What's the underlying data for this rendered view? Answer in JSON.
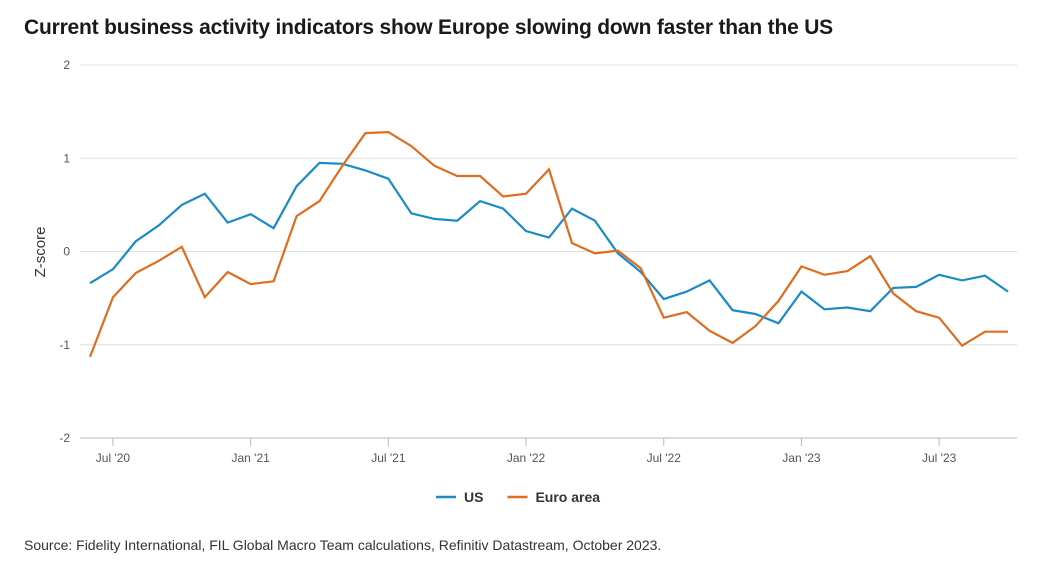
{
  "title": "Current business activity indicators show Europe slowing down faster than the US",
  "source": "Source: Fidelity International, FIL Global Macro Team calculations, Refinitiv Datastream, October 2023.",
  "chart_data": {
    "type": "line",
    "ylabel": "Z-score",
    "xlabel": "",
    "ylim": [
      -2,
      2
    ],
    "yticks": [
      2,
      1,
      0,
      -1,
      -2
    ],
    "xlim": [
      "2020-06",
      "2023-10"
    ],
    "xticks": [
      {
        "label": "Jul '20",
        "date": "2020-07"
      },
      {
        "label": "Jan '21",
        "date": "2021-01"
      },
      {
        "label": "Jul '21",
        "date": "2021-07"
      },
      {
        "label": "Jan '22",
        "date": "2022-01"
      },
      {
        "label": "Jul '22",
        "date": "2022-07"
      },
      {
        "label": "Jan '23",
        "date": "2023-01"
      },
      {
        "label": "Jul '23",
        "date": "2023-07"
      }
    ],
    "grid": true,
    "legend_position": "bottom",
    "x": [
      "2020-06",
      "2020-07",
      "2020-08",
      "2020-09",
      "2020-10",
      "2020-11",
      "2020-12",
      "2021-01",
      "2021-02",
      "2021-03",
      "2021-04",
      "2021-05",
      "2021-06",
      "2021-07",
      "2021-08",
      "2021-09",
      "2021-10",
      "2021-11",
      "2021-12",
      "2022-01",
      "2022-02",
      "2022-03",
      "2022-04",
      "2022-05",
      "2022-06",
      "2022-07",
      "2022-08",
      "2022-09",
      "2022-10",
      "2022-11",
      "2022-12",
      "2023-01",
      "2023-02",
      "2023-03",
      "2023-04",
      "2023-05",
      "2023-06",
      "2023-07",
      "2023-08",
      "2023-09",
      "2023-10"
    ],
    "series": [
      {
        "name": "US",
        "color": "#1a8bc4",
        "values": [
          -0.34,
          -0.19,
          0.11,
          0.28,
          0.5,
          0.62,
          0.31,
          0.4,
          0.25,
          0.7,
          0.95,
          0.94,
          0.87,
          0.78,
          0.41,
          0.35,
          0.33,
          0.54,
          0.46,
          0.22,
          0.15,
          0.46,
          0.33,
          -0.02,
          -0.22,
          -0.51,
          -0.43,
          -0.31,
          -0.63,
          -0.67,
          -0.77,
          -0.43,
          -0.62,
          -0.6,
          -0.64,
          -0.39,
          -0.38,
          -0.25,
          -0.31,
          -0.26,
          -0.43
        ]
      },
      {
        "name": "Euro area",
        "color": "#e06c1f",
        "values": [
          -1.13,
          -0.49,
          -0.23,
          -0.1,
          0.05,
          -0.49,
          -0.22,
          -0.35,
          -0.32,
          0.38,
          0.54,
          0.92,
          1.27,
          1.28,
          1.13,
          0.92,
          0.81,
          0.81,
          0.59,
          0.62,
          0.88,
          0.09,
          -0.02,
          0.01,
          -0.18,
          -0.71,
          -0.65,
          -0.85,
          -0.98,
          -0.8,
          -0.53,
          -0.16,
          -0.25,
          -0.21,
          -0.05,
          -0.45,
          -0.64,
          -0.71,
          -1.01,
          -0.86,
          -0.86
        ]
      }
    ]
  }
}
